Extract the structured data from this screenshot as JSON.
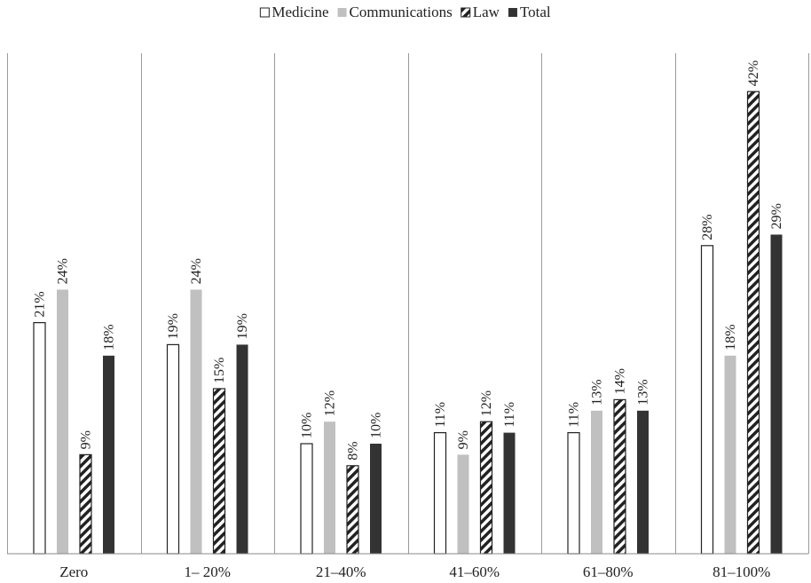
{
  "chart_data": {
    "type": "bar",
    "title": "",
    "xlabel": "",
    "ylabel": "",
    "categories": [
      "Zero",
      "1– 20%",
      "21–40%",
      "41–60%",
      "61–80%",
      "81–100%"
    ],
    "series": [
      {
        "name": "Medicine",
        "values": [
          21,
          19,
          10,
          11,
          11,
          28
        ],
        "labels": [
          "21%",
          "19%",
          "10%",
          "11%",
          "11%",
          "28%"
        ],
        "fill": "#ffffff",
        "stroke": "#222222",
        "pattern": "none"
      },
      {
        "name": "Communications",
        "values": [
          24,
          24,
          12,
          9,
          13,
          18
        ],
        "labels": [
          "24%",
          "24%",
          "12%",
          "9%",
          "13%",
          "18%"
        ],
        "fill": "#c0c0c0",
        "stroke": "none",
        "pattern": "none"
      },
      {
        "name": "Law",
        "values": [
          9,
          15,
          8,
          12,
          14,
          42
        ],
        "labels": [
          "9%",
          "15%",
          "8%",
          "12%",
          "14%",
          "42%"
        ],
        "fill": "#ffffff",
        "stroke": "#222222",
        "pattern": "diagonal-hatch"
      },
      {
        "name": "Total",
        "values": [
          18,
          19,
          10,
          11,
          13,
          29
        ],
        "labels": [
          "18%",
          "19%",
          "10%",
          "11%",
          "13%",
          "29%"
        ],
        "fill": "#333333",
        "stroke": "none",
        "pattern": "none"
      }
    ],
    "ylim": [
      0,
      45
    ],
    "grid": "vertical-separators",
    "legend_position": "top-center"
  }
}
